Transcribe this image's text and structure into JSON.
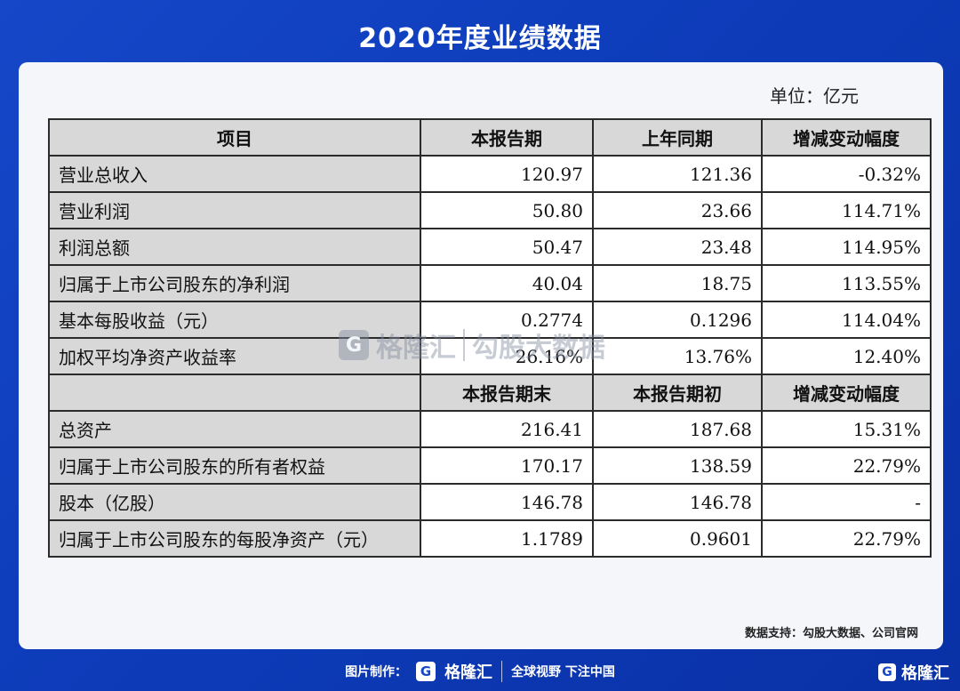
{
  "title": "2020年度业绩数据",
  "unit": "单位：亿元",
  "table": {
    "header1": [
      "项目",
      "本报告期",
      "上年同期",
      "增减变动幅度"
    ],
    "rows1": [
      [
        "营业总收入",
        "120.97",
        "121.36",
        "-0.32%"
      ],
      [
        "营业利润",
        "50.80",
        "23.66",
        "114.71%"
      ],
      [
        "利润总额",
        "50.47",
        "23.48",
        "114.95%"
      ],
      [
        "归属于上市公司股东的净利润",
        "40.04",
        "18.75",
        "113.55%"
      ],
      [
        "基本每股收益（元）",
        "0.2774",
        "0.1296",
        "114.04%"
      ],
      [
        "加权平均净资产收益率",
        "26.16%",
        "13.76%",
        "12.40%"
      ]
    ],
    "header2": [
      "",
      "本报告期末",
      "本报告期初",
      "增减变动幅度"
    ],
    "rows2": [
      [
        "总资产",
        "216.41",
        "187.68",
        "15.31%"
      ],
      [
        "归属于上市公司股东的所有者权益",
        "170.17",
        "138.59",
        "22.79%"
      ],
      [
        "股本（亿股）",
        "146.78",
        "146.78",
        "-"
      ],
      [
        "归属于上市公司股东的每股净资产（元）",
        "1.1789",
        "0.9601",
        "22.79%"
      ]
    ]
  },
  "watermark": {
    "logo": "G",
    "brand": "格隆汇",
    "text": "勾股大数据"
  },
  "source": "数据支持：勾股大数据、公司官网",
  "footer": {
    "made_by": "图片制作：",
    "logo": "G",
    "brand": "格隆汇",
    "slogan": "全球视野 下注中国"
  },
  "corner": {
    "logo": "G",
    "brand": "格隆汇"
  }
}
